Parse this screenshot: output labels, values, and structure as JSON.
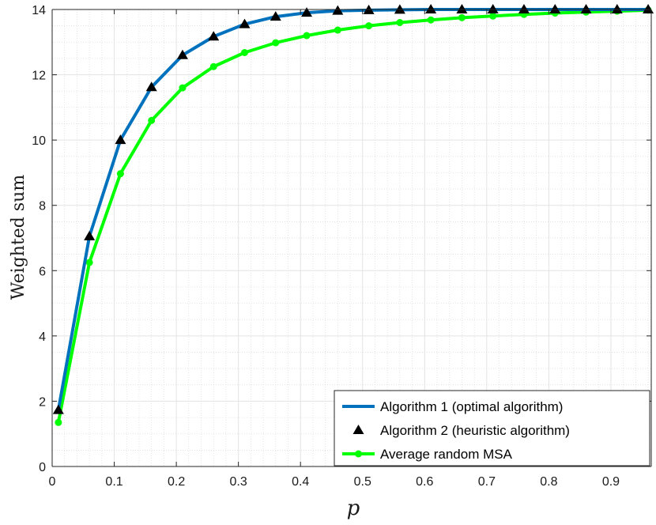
{
  "chart_data": {
    "type": "line",
    "xlabel": "p",
    "ylabel": "Weighted sum",
    "xlim": [
      0,
      0.965
    ],
    "ylim": [
      0,
      14
    ],
    "xticks": [
      0,
      0.1,
      0.2,
      0.3,
      0.4,
      0.5,
      0.6,
      0.7,
      0.8,
      0.9
    ],
    "yticks": [
      0,
      2,
      4,
      6,
      8,
      10,
      12,
      14
    ],
    "grid": true,
    "minor_grid": true,
    "legend_position": "bottom-right",
    "x": [
      0.01,
      0.06,
      0.11,
      0.16,
      0.21,
      0.26,
      0.31,
      0.36,
      0.41,
      0.46,
      0.51,
      0.56,
      0.61,
      0.66,
      0.71,
      0.76,
      0.81,
      0.86,
      0.91,
      0.96
    ],
    "series": [
      {
        "name": "Algorithm 1 (optimal algorithm)",
        "color": "#0072BD",
        "style": "line",
        "values": [
          1.73,
          7.05,
          10.0,
          11.62,
          12.6,
          13.17,
          13.55,
          13.78,
          13.9,
          13.96,
          13.98,
          13.99,
          14.0,
          14.0,
          14.0,
          14.0,
          14.0,
          14.0,
          14.0,
          14.0
        ]
      },
      {
        "name": "Algorithm 2  (heuristic algorithm)",
        "color": "#000000",
        "style": "triangle-markers",
        "values": [
          1.73,
          7.05,
          10.0,
          11.62,
          12.6,
          13.17,
          13.55,
          13.78,
          13.9,
          13.96,
          13.98,
          13.99,
          14.0,
          14.0,
          14.0,
          14.0,
          14.0,
          14.0,
          14.0,
          14.0
        ]
      },
      {
        "name": "Average random MSA",
        "color": "#00FF00",
        "style": "line-circle-markers",
        "values": [
          1.35,
          6.25,
          8.97,
          10.6,
          11.6,
          12.25,
          12.68,
          12.98,
          13.2,
          13.37,
          13.5,
          13.6,
          13.68,
          13.75,
          13.8,
          13.85,
          13.89,
          13.92,
          13.95,
          13.98
        ]
      }
    ]
  }
}
